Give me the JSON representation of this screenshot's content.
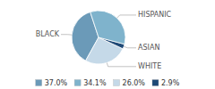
{
  "chart_data": {
    "type": "pie",
    "categories": [
      "BLACK",
      "WHITE",
      "ASIAN",
      "HISPANIC"
    ],
    "values": [
      37.0,
      26.0,
      2.9,
      34.1
    ],
    "value_labels": [
      "37.0%",
      "26.0%",
      "2.9%",
      "34.1%"
    ],
    "colors": [
      "#6b9ab8",
      "#c5d9e8",
      "#1e4976",
      "#7fb3cc"
    ],
    "legend": "bottom"
  }
}
